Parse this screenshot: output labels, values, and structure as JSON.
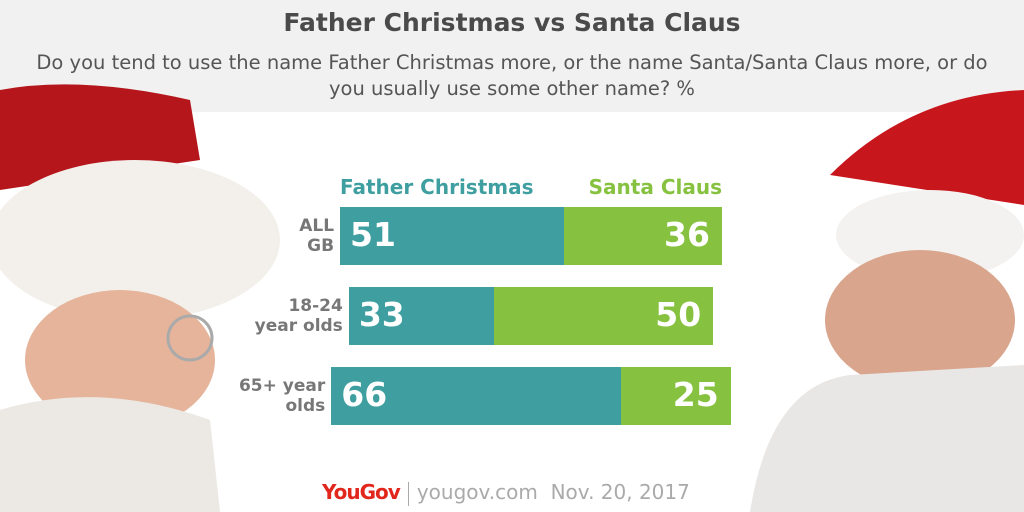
{
  "chart_data": {
    "type": "bar",
    "stacked": true,
    "orientation": "horizontal",
    "title": "Father Christmas vs Santa Claus",
    "subtitle": "Do you tend to use the name Father Christmas more, or the name Santa/Santa Claus more, or do you usually use some other name? %",
    "categories": [
      [
        "ALL",
        "GB"
      ],
      [
        "18-24",
        "year olds"
      ],
      [
        "65+ year",
        "olds"
      ]
    ],
    "series": [
      {
        "name": "Father Christmas",
        "values": [
          51,
          33,
          66
        ],
        "color": "#3f9fa0"
      },
      {
        "name": "Santa Claus",
        "values": [
          36,
          50,
          25
        ],
        "color": "#86c140"
      }
    ],
    "legend": "top"
  },
  "footer": {
    "brand": "YouGov",
    "site": "yougov.com",
    "date": "Nov. 20, 2017"
  }
}
